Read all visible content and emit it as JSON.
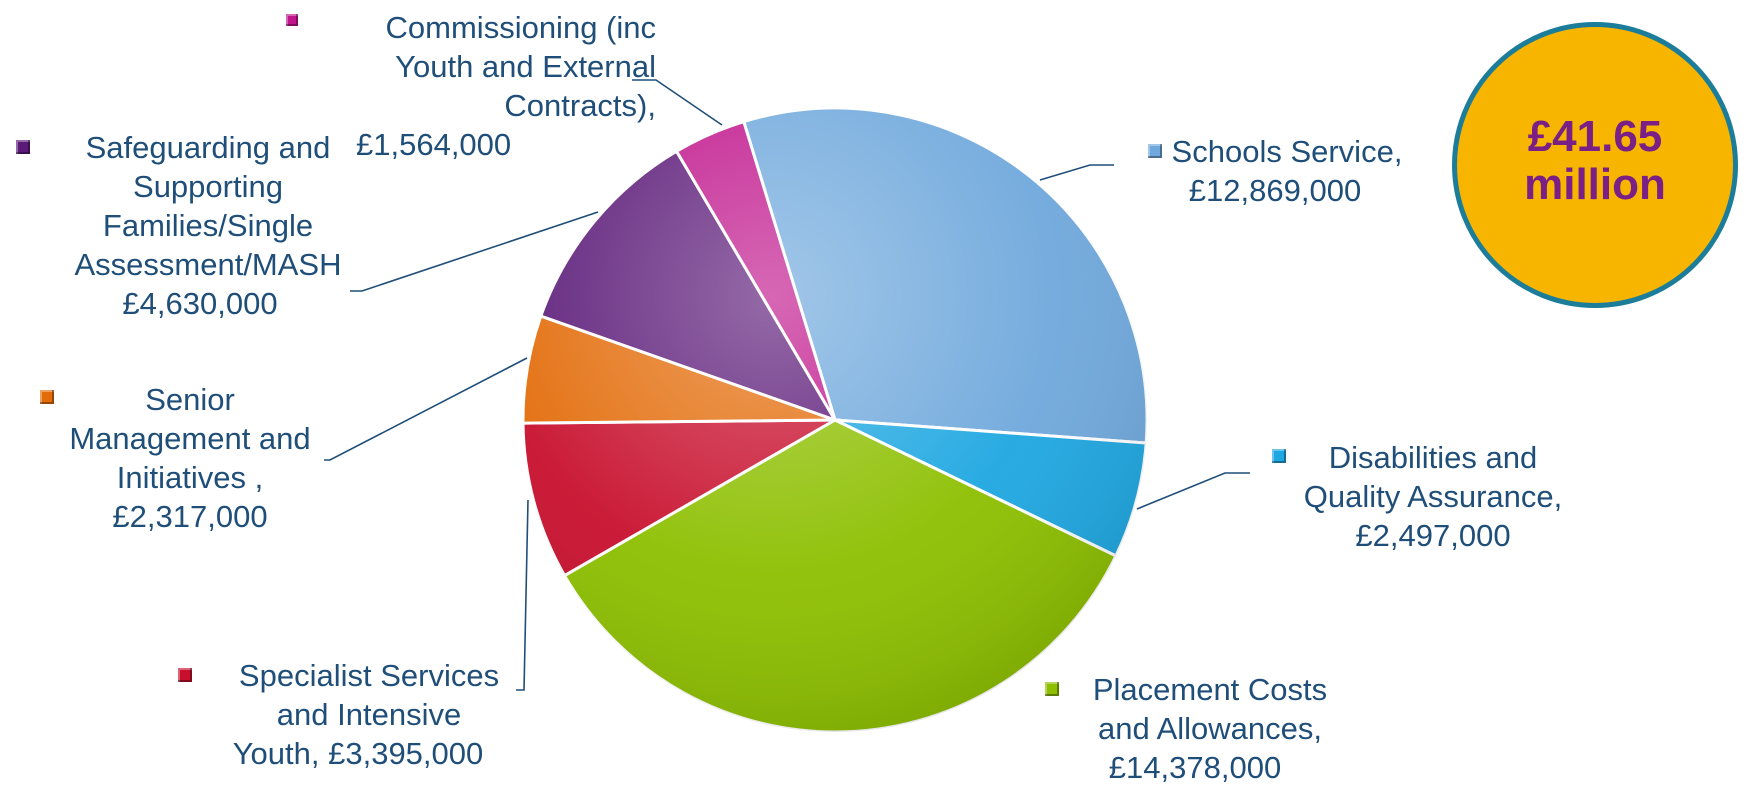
{
  "total_badge": {
    "text": "£41.65\nmillion",
    "fill": "#f7b500",
    "border": "#1b7d9a",
    "text_color": "#7a1f86"
  },
  "chart_data": {
    "type": "pie",
    "title": "",
    "start_angle_deg": -17,
    "direction": "clockwise",
    "slices": [
      {
        "label": "Schools Service,",
        "value_label": "£12,869,000",
        "value": 12869000,
        "color": "#6fa8dc"
      },
      {
        "label": "Disabilities and\nQuality Assurance,",
        "value_label": "£2,497,000",
        "value": 2497000,
        "color": "#1ea7e1"
      },
      {
        "label": "Placement Costs\nand Allowances,",
        "value_label": "£14,378,000",
        "value": 14378000,
        "color": "#8dbf00"
      },
      {
        "label": "Specialist Services\nand Intensive",
        "value_label": "Youth, £3,395,000",
        "value": 3395000,
        "color": "#c8102e"
      },
      {
        "label": "Senior\nManagement and\nInitiatives ,",
        "value_label": "£2,317,000",
        "value": 2317000,
        "color": "#e36c0a"
      },
      {
        "label": "Safeguarding and\nSupporting\nFamilies/Single\nAssessment/MASH",
        "value_label": "£4,630,000",
        "value": 4630000,
        "color": "#5b1a78"
      },
      {
        "label": "Commissioning (inc\nYouth and External\nContracts),",
        "value_label": "£1,564,000",
        "value": 1564000,
        "color": "#c0168c"
      }
    ]
  }
}
